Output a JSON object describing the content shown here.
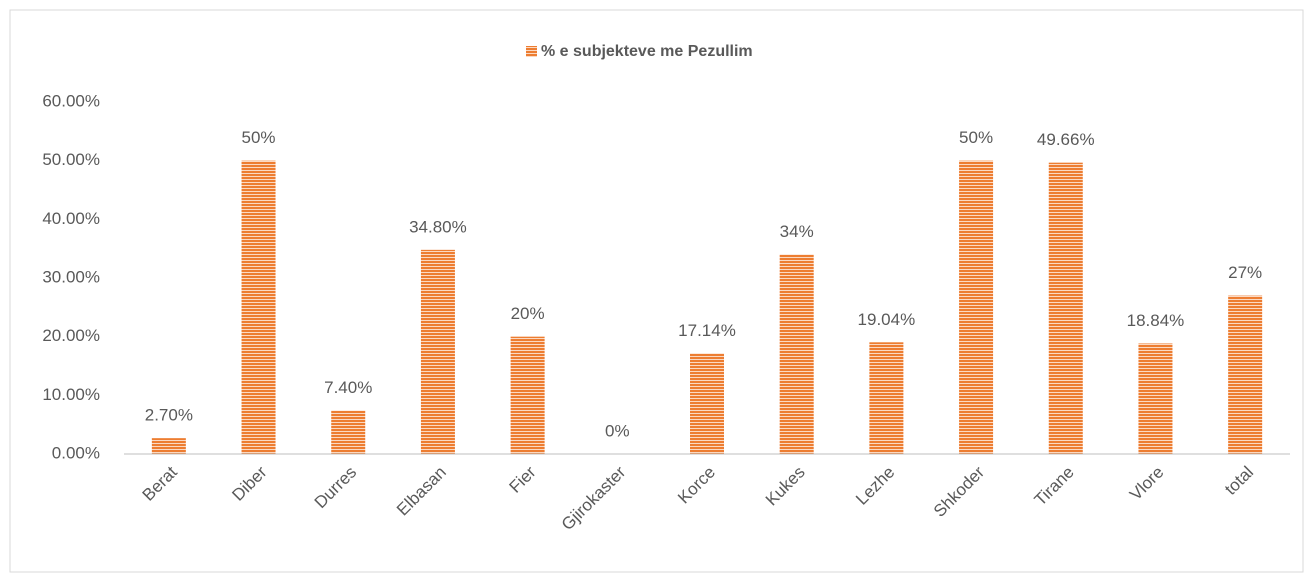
{
  "chart_data": {
    "type": "bar",
    "legend": "% e subjekteve me Pezullim",
    "series": [
      {
        "name": "% e subjekteve me Pezullim",
        "color": "#ed7d31",
        "values": [
          2.7,
          50,
          7.4,
          34.8,
          20,
          0,
          17.14,
          34,
          19.04,
          50,
          49.66,
          18.84,
          27
        ],
        "value_labels": [
          "2.70%",
          "50%",
          "7.40%",
          "34.80%",
          "20%",
          "0%",
          "17.14%",
          "34%",
          "19.04%",
          "50%",
          "49.66%",
          "18.84%",
          "27%"
        ]
      }
    ],
    "categories": [
      "Berat",
      "Diber",
      "Durres",
      "Elbasan",
      "Fier",
      "Gjirokaster",
      "Korce",
      "Kukes",
      "Lezhe",
      "Shkoder",
      "Tirane",
      "Vlore",
      "total"
    ],
    "ylim": [
      0,
      60
    ],
    "yticks": [
      {
        "value": 0,
        "label": "0.00%"
      },
      {
        "value": 10,
        "label": "10.00%"
      },
      {
        "value": 20,
        "label": "20.00%"
      },
      {
        "value": 30,
        "label": "30.00%"
      },
      {
        "value": 40,
        "label": "40.00%"
      },
      {
        "value": 50,
        "label": "50.00%"
      },
      {
        "value": 60,
        "label": "60.00%"
      }
    ],
    "legend_position": "top",
    "grid": false
  }
}
